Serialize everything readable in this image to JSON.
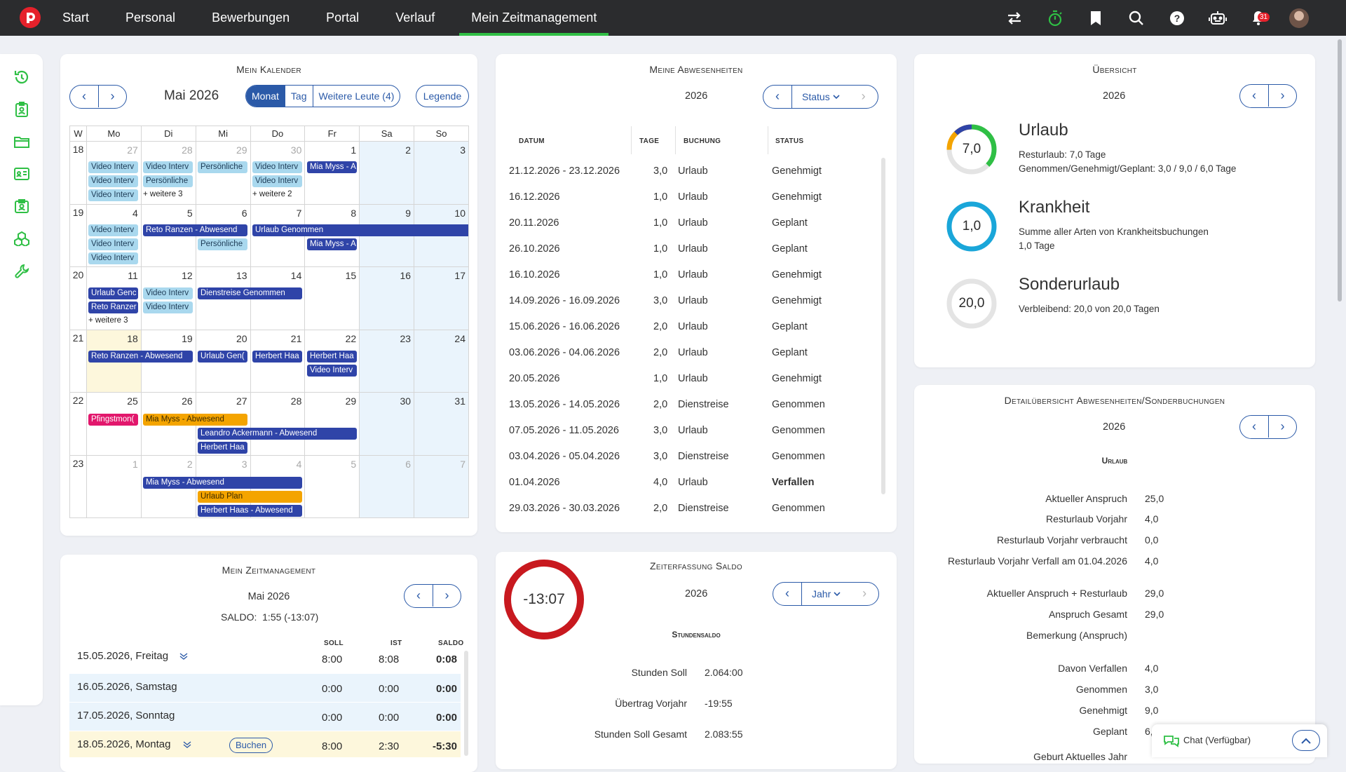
{
  "nav": {
    "items": [
      "Start",
      "Personal",
      "Bewerbungen",
      "Portal",
      "Verlauf",
      "Mein Zeitmanagement"
    ],
    "notif_count": "31"
  },
  "calendar": {
    "title": "Mein Kalender",
    "month": "Mai 2026",
    "views": [
      "Monat",
      "Tag",
      "Weitere Leute (4)"
    ],
    "legend": "Legende",
    "weekdays": [
      "W",
      "Mo",
      "Di",
      "Mi",
      "Do",
      "Fr",
      "Sa",
      "So"
    ],
    "weeks": [
      {
        "wk": "18",
        "days": [
          "27",
          "28",
          "29",
          "30",
          "1",
          "2",
          "3"
        ]
      },
      {
        "wk": "19",
        "days": [
          "4",
          "5",
          "6",
          "7",
          "8",
          "9",
          "10"
        ]
      },
      {
        "wk": "20",
        "days": [
          "11",
          "12",
          "13",
          "14",
          "15",
          "16",
          "17"
        ]
      },
      {
        "wk": "21",
        "days": [
          "18",
          "19",
          "20",
          "21",
          "22",
          "23",
          "24"
        ]
      },
      {
        "wk": "22",
        "days": [
          "25",
          "26",
          "27",
          "28",
          "29",
          "30",
          "31"
        ]
      },
      {
        "wk": "23",
        "days": [
          "1",
          "2",
          "3",
          "4",
          "5",
          "6",
          "7"
        ]
      }
    ],
    "events": {
      "w18_mo_1": "Video Interv",
      "w18_mo_2": "Video Interv",
      "w18_mo_3": "Video Interv",
      "w18_di_1": "Video Interv",
      "w18_di_2": "Persönliche",
      "w18_di_more": "+ weitere 3",
      "w18_mi_1": "Persönliche",
      "w18_do_1": "Video Interv",
      "w18_do_2": "Video Interv",
      "w18_do_more": "+ weitere 2",
      "w18_fr_1": "Mia Myss - A",
      "w19_mo_1": "Video Interv",
      "w19_mo_2": "Video Interv",
      "w19_mo_3": "Video Interv",
      "w19_di_1": "Reto Ranzen - Abwesend",
      "w19_mi_2": "Persönliche",
      "w19_do_1": "Urlaub Genommen",
      "w19_fr_2": "Mia Myss - A",
      "w20_mo_1": "Urlaub Genc",
      "w20_mo_2": "Reto Ranzer",
      "w20_mo_more": "+ weitere 3",
      "w20_di_1": "Video Interv",
      "w20_di_2": "Video Interv",
      "w20_mi_1": "Dienstreise Genommen",
      "w21_mo_1": "Reto Ranzen - Abwesend",
      "w21_mi_1": "Urlaub Gen(",
      "w21_do_1": "Herbert Haa",
      "w21_fr_1": "Herbert Haa",
      "w21_fr_2": "Video Interv",
      "w22_mo_1": "Pfingstmon(",
      "w22_di_1": "Mia Myss - Abwesend",
      "w22_mi_2": "Leandro Ackermann - Abwesend",
      "w22_mi_3": "Herbert Haa",
      "w23_di_1": "Mia Myss - Abwesend",
      "w23_mi_2": "Urlaub Plan",
      "w23_mi_3": "Herbert Haas - Abwesend"
    }
  },
  "absences": {
    "title": "Meine Abwesenheiten",
    "year": "2026",
    "filter": "Status",
    "headers": [
      "DATUM",
      "TAGE",
      "BUCHUNG",
      "STATUS"
    ],
    "rows": [
      {
        "date": "21.12.2026 - 23.12.2026",
        "days": "3,0",
        "type": "Urlaub",
        "status": "Genehmigt"
      },
      {
        "date": "16.12.2026",
        "days": "1,0",
        "type": "Urlaub",
        "status": "Genehmigt"
      },
      {
        "date": "20.11.2026",
        "days": "1,0",
        "type": "Urlaub",
        "status": "Geplant"
      },
      {
        "date": "26.10.2026",
        "days": "1,0",
        "type": "Urlaub",
        "status": "Geplant"
      },
      {
        "date": "16.10.2026",
        "days": "1,0",
        "type": "Urlaub",
        "status": "Genehmigt"
      },
      {
        "date": "14.09.2026 - 16.09.2026",
        "days": "3,0",
        "type": "Urlaub",
        "status": "Genehmigt"
      },
      {
        "date": "15.06.2026 - 16.06.2026",
        "days": "2,0",
        "type": "Urlaub",
        "status": "Geplant"
      },
      {
        "date": "03.06.2026 - 04.06.2026",
        "days": "2,0",
        "type": "Urlaub",
        "status": "Geplant"
      },
      {
        "date": "20.05.2026",
        "days": "1,0",
        "type": "Urlaub",
        "status": "Genehmigt"
      },
      {
        "date": "13.05.2026 - 14.05.2026",
        "days": "2,0",
        "type": "Dienstreise",
        "status": "Genommen"
      },
      {
        "date": "07.05.2026 - 11.05.2026",
        "days": "3,0",
        "type": "Urlaub",
        "status": "Genommen"
      },
      {
        "date": "03.04.2026 - 05.04.2026",
        "days": "3,0",
        "type": "Dienstreise",
        "status": "Genommen"
      },
      {
        "date": "01.04.2026",
        "days": "4,0",
        "type": "Urlaub",
        "status": "Verfallen"
      },
      {
        "date": "29.03.2026 - 30.03.2026",
        "days": "2,0",
        "type": "Dienstreise",
        "status": "Genommen"
      }
    ]
  },
  "overview": {
    "title": "Übersicht",
    "year": "2026",
    "items": [
      {
        "value": "7,0",
        "name": "Urlaub",
        "line1": "Resturlaub: 7,0 Tage",
        "line2": "Genommen/Genehmigt/Geplant: 3,0 / 9,0 / 6,0 Tage"
      },
      {
        "value": "1,0",
        "name": "Krankheit",
        "line1": "Summe aller Arten von Krankheitsbuchungen",
        "line2": "1,0 Tage"
      },
      {
        "value": "20,0",
        "name": "Sonderurlaub",
        "line1": "Verbleibend: 20,0 von 20,0 Tagen",
        "line2": ""
      }
    ]
  },
  "detail": {
    "title": "Detailübersicht Abwesenheiten/Sonderbuchungen",
    "year": "2026",
    "section": "Urlaub",
    "rows": [
      {
        "k": "Aktueller Anspruch",
        "v": "25,0"
      },
      {
        "k": "Resturlaub Vorjahr",
        "v": "4,0"
      },
      {
        "k": "Resturlaub Vorjahr verbraucht",
        "v": "0,0"
      },
      {
        "k": "Resturlaub Vorjahr Verfall am 01.04.2026",
        "v": "4,0"
      },
      {
        "k": "Aktueller Anspruch + Resturlaub",
        "v": "29,0"
      },
      {
        "k": "Anspruch Gesamt",
        "v": "29,0"
      },
      {
        "k": "Bemerkung (Anspruch)",
        "v": ""
      },
      {
        "k": "Davon Verfallen",
        "v": "4,0"
      },
      {
        "k": "Genommen",
        "v": "3,0"
      },
      {
        "k": "Genehmigt",
        "v": "9,0"
      },
      {
        "k": "Geplant",
        "v": "6,0"
      },
      {
        "k": "Geburt Aktuelles Jahr",
        "v": ""
      }
    ]
  },
  "timemgmt": {
    "title": "Mein Zeitmanagement",
    "month": "Mai 2026",
    "saldo_label": "SALDO:",
    "saldo_value": "1:55 (-13:07)",
    "headers": [
      "SOLL",
      "IST",
      "SALDO"
    ],
    "book_label": "Buchen",
    "rows": [
      {
        "day": "15.05.2026, Freitag",
        "soll": "8:00",
        "ist": "8:08",
        "saldo": "0:08"
      },
      {
        "day": "16.05.2026, Samstag",
        "soll": "0:00",
        "ist": "0:00",
        "saldo": "0:00"
      },
      {
        "day": "17.05.2026, Sonntag",
        "soll": "0:00",
        "ist": "0:00",
        "saldo": "0:00"
      },
      {
        "day": "18.05.2026, Montag",
        "soll": "8:00",
        "ist": "2:30",
        "saldo": "-5:30"
      }
    ]
  },
  "zeiterfassung": {
    "title": "Zeiterfassung Saldo",
    "ring_value": "-13:07",
    "year": "2026",
    "filter": "Jahr",
    "section": "Stundensaldo",
    "rows": [
      {
        "k": "Stunden Soll",
        "v": "2.064:00"
      },
      {
        "k": "Übertrag Vorjahr",
        "v": "-19:55"
      },
      {
        "k": "Stunden Soll Gesamt",
        "v": "2.083:55"
      }
    ]
  },
  "chat": {
    "label": "Chat (Verfügbar)"
  },
  "colors": {
    "accent": "#2b5aa8",
    "green": "#2fbf45",
    "red": "#c8191f",
    "cyan": "#1aa6d9"
  }
}
